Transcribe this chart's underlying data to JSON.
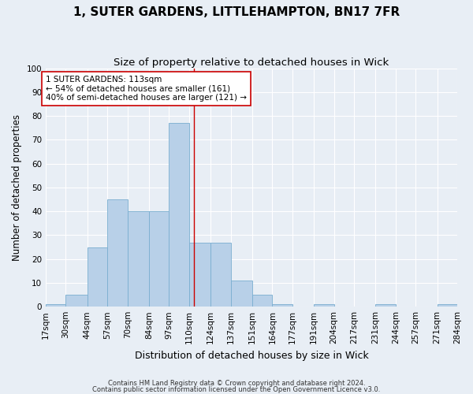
{
  "title": "1, SUTER GARDENS, LITTLEHAMPTON, BN17 7FR",
  "subtitle": "Size of property relative to detached houses in Wick",
  "xlabel": "Distribution of detached houses by size in Wick",
  "ylabel": "Number of detached properties",
  "bin_edges": [
    17,
    30,
    44,
    57,
    70,
    84,
    97,
    110,
    124,
    137,
    151,
    164,
    177,
    191,
    204,
    217,
    231,
    244,
    257,
    271,
    284
  ],
  "bar_heights": [
    1,
    5,
    25,
    45,
    40,
    40,
    77,
    27,
    27,
    11,
    5,
    1,
    0,
    1,
    0,
    0,
    1,
    0,
    0,
    1
  ],
  "bar_color": "#b8d0e8",
  "bar_edge_color": "#7aaed0",
  "property_size": 113,
  "property_label": "1 SUTER GARDENS: 113sqm",
  "annotation_line1": "← 54% of detached houses are smaller (161)",
  "annotation_line2": "40% of semi-detached houses are larger (121) →",
  "vline_color": "#cc0000",
  "bg_color": "#e8eef5",
  "plot_bg_color": "#e8eef5",
  "grid_color": "#ffffff",
  "ylim": [
    0,
    100
  ],
  "footnote1": "Contains HM Land Registry data © Crown copyright and database right 2024.",
  "footnote2": "Contains public sector information licensed under the Open Government Licence v3.0.",
  "title_fontsize": 11,
  "subtitle_fontsize": 9.5,
  "xlabel_fontsize": 9,
  "ylabel_fontsize": 8.5,
  "tick_fontsize": 7.5,
  "annotation_fontsize": 7.5,
  "annotation_box_color": "#ffffff",
  "annotation_box_edge": "#cc0000",
  "footnote_fontsize": 6.0
}
